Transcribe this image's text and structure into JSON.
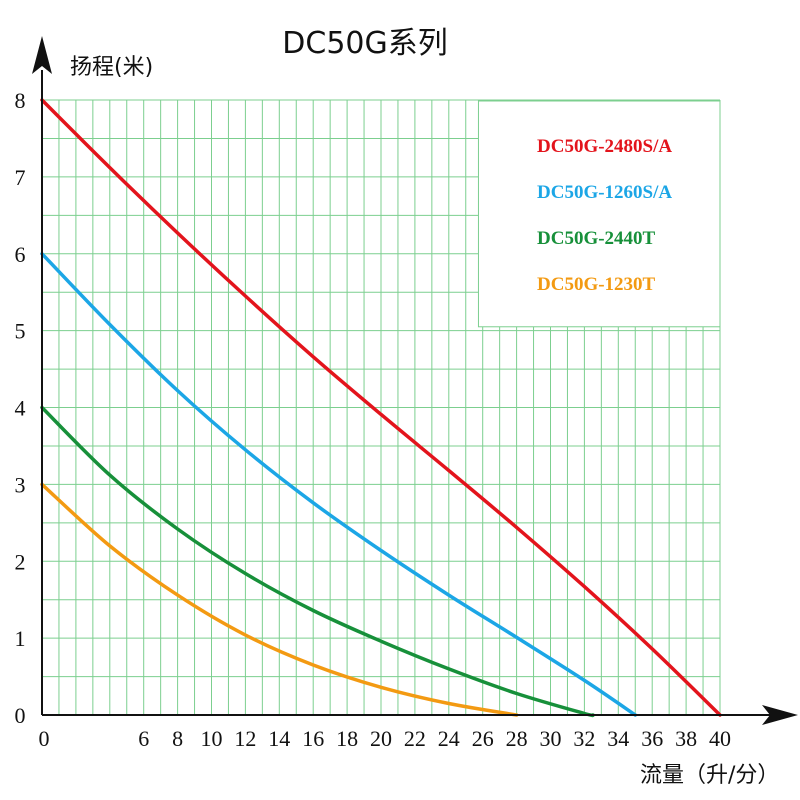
{
  "chart_data": {
    "type": "line",
    "title": "DC50G系列",
    "xlabel": "流量（升/分）",
    "ylabel": "扬程(米)",
    "xlim": [
      0,
      40
    ],
    "ylim": [
      0,
      8
    ],
    "x_ticks": [
      0,
      6,
      8,
      10,
      12,
      14,
      16,
      18,
      20,
      22,
      24,
      26,
      28,
      30,
      32,
      34,
      36,
      38,
      40
    ],
    "y_ticks": [
      0,
      1,
      2,
      3,
      4,
      5,
      6,
      7,
      8
    ],
    "grid": true,
    "grid_color": "#7ccf8f",
    "legend_position": "top-right",
    "series": [
      {
        "name": "DC50G-2480S/A",
        "color": "#e3141c",
        "x": [
          0,
          4,
          8,
          12,
          16,
          20,
          24,
          28,
          32,
          36,
          40
        ],
        "y": [
          8.0,
          7.12,
          6.27,
          5.45,
          4.66,
          3.91,
          3.18,
          2.44,
          1.67,
          0.86,
          0.0
        ]
      },
      {
        "name": "DC50G-1260S/A",
        "color": "#1ca6e6",
        "x": [
          0,
          4,
          8,
          12,
          16,
          20,
          24,
          28,
          32,
          35
        ],
        "y": [
          6.0,
          5.08,
          4.22,
          3.45,
          2.76,
          2.14,
          1.56,
          1.01,
          0.45,
          0.0
        ]
      },
      {
        "name": "DC50G-2440T",
        "color": "#17903a",
        "x": [
          0,
          4,
          8,
          12,
          16,
          20,
          24,
          28,
          32,
          32.5
        ],
        "y": [
          4.0,
          3.12,
          2.42,
          1.84,
          1.36,
          0.96,
          0.6,
          0.28,
          0.02,
          0.0
        ]
      },
      {
        "name": "DC50G-1230T",
        "color": "#f39a12",
        "x": [
          0,
          4,
          8,
          12,
          16,
          20,
          24,
          28
        ],
        "y": [
          3.0,
          2.2,
          1.56,
          1.04,
          0.65,
          0.36,
          0.15,
          0.0
        ]
      }
    ]
  }
}
